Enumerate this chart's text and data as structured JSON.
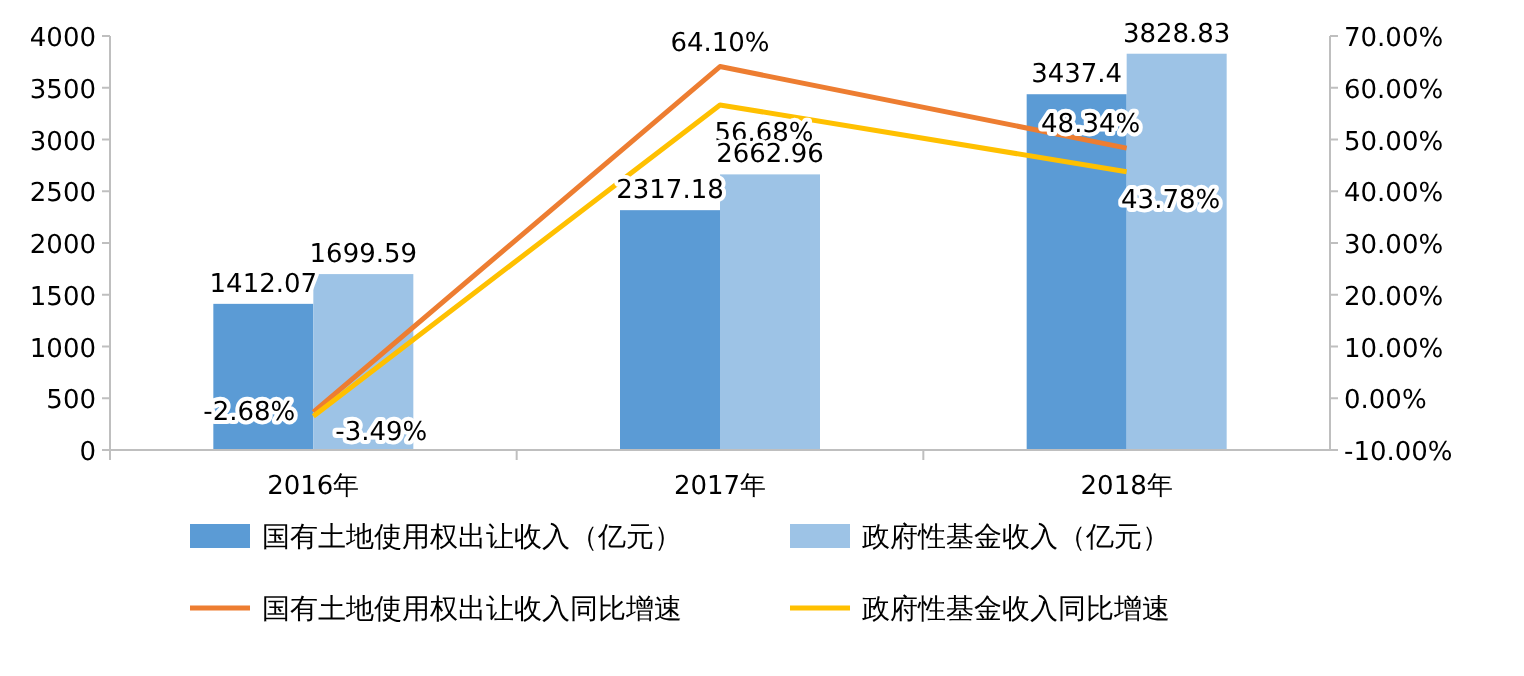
{
  "chart_data": {
    "type": "bar",
    "categories": [
      "2016年",
      "2017年",
      "2018年"
    ],
    "series": [
      {
        "name": "国有土地使用权出让收入（亿元）",
        "color": "#5b9bd5",
        "values": [
          1412.07,
          2317.18,
          3437.4
        ],
        "value_labels": [
          "1412.07",
          "2317.18",
          "3437.4"
        ]
      },
      {
        "name": "政府性基金收入（亿元）",
        "color": "#9dc3e6",
        "values": [
          1699.59,
          2662.96,
          3828.83
        ],
        "value_labels": [
          "1699.59",
          "2662.96",
          "3828.83"
        ]
      },
      {
        "name": "国有土地使用权出让收入同比增速",
        "type": "line",
        "axis": "y2",
        "color": "#ed7d31",
        "values": [
          -2.68,
          64.1,
          48.34
        ],
        "value_labels": [
          "-2.68%",
          "64.10%",
          "48.34%"
        ]
      },
      {
        "name": "政府性基金收入同比增速",
        "type": "line",
        "axis": "y2",
        "color": "#ffc000",
        "values": [
          -3.49,
          56.68,
          43.78
        ],
        "value_labels": [
          "-3.49%",
          "56.68%",
          "43.78%"
        ]
      }
    ],
    "ylim": [
      0,
      4000
    ],
    "yticks": [
      0,
      500,
      1000,
      1500,
      2000,
      2500,
      3000,
      3500,
      4000
    ],
    "y2lim": [
      -10,
      70
    ],
    "y2ticks": [
      {
        "value": -10,
        "label": "-10.00%"
      },
      {
        "value": 0,
        "label": "0.00%"
      },
      {
        "value": 10,
        "label": "10.00%"
      },
      {
        "value": 20,
        "label": "20.00%"
      },
      {
        "value": 30,
        "label": "30.00%"
      },
      {
        "value": 40,
        "label": "40.00%"
      },
      {
        "value": 50,
        "label": "50.00%"
      },
      {
        "value": 60,
        "label": "60.00%"
      },
      {
        "value": 70,
        "label": "70.00%"
      }
    ],
    "legend": "bottom",
    "grid": false,
    "marker": "none"
  }
}
